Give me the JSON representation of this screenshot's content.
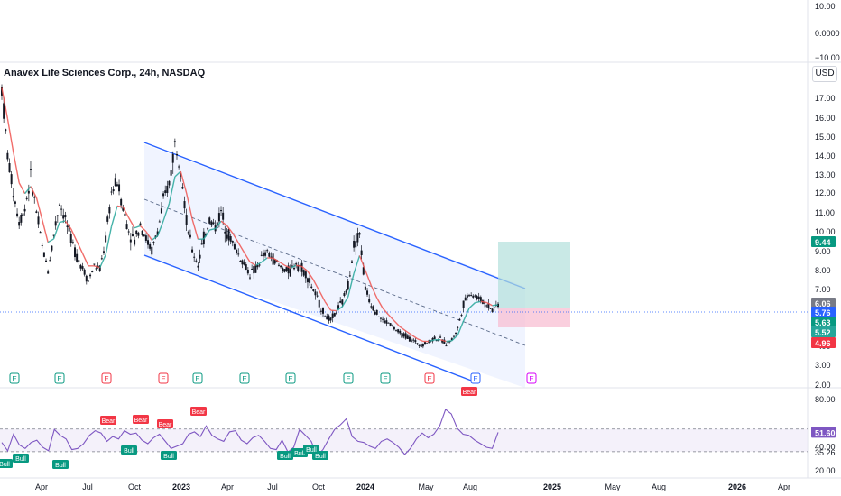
{
  "header": {
    "symbol_title": "Anavex Life Sciences Corp., 24h, NASDAQ",
    "currency": "USD"
  },
  "colors": {
    "channel": "#2962ff",
    "ema_up": "#26a69a",
    "ema_down": "#ef5350",
    "rsi": "#7e57c2",
    "profit_zone": "#b2dfdb",
    "loss_zone": "#f8bbd0",
    "candles": "#131722"
  },
  "chart_data": [
    {
      "type": "line",
      "title": "",
      "ylim": [
        2.0,
        18.0
      ],
      "y_scale": "log",
      "x_ticks": [
        "Apr",
        "Jul",
        "Oct",
        "2023",
        "Apr",
        "Jul",
        "Oct",
        "2024",
        "May",
        "Aug",
        "2025",
        "May",
        "Aug",
        "2026",
        "Apr"
      ],
      "y_ticks": [
        17.0,
        16.0,
        15.0,
        14.0,
        13.0,
        12.0,
        11.0,
        10.0,
        9.0,
        8.0,
        7.0,
        6.0,
        5.0,
        4.0,
        3.0,
        2.0
      ],
      "price_labels": [
        {
          "value": "9.44",
          "color": "#089981"
        },
        {
          "value": "6.06",
          "color": "#787b86"
        },
        {
          "value": "5.76",
          "color": "#2962ff"
        },
        {
          "value": "5.63",
          "color": "#089981"
        },
        {
          "value": "5.52",
          "color": "#26a69a"
        },
        {
          "value": "4.96",
          "color": "#f23645"
        }
      ],
      "series": [
        {
          "values": [
            17.5,
            14.0,
            12.0,
            10.5,
            11.2,
            12.8,
            11.0,
            9.2,
            8.0,
            9.8,
            11.5,
            10.6,
            9.6,
            8.7,
            8.1,
            7.4,
            8.2,
            8.0,
            9.6,
            12.0,
            12.6,
            11.2,
            10.0,
            9.5,
            10.4,
            9.6,
            9.0,
            10.0,
            11.5,
            12.5,
            14.6,
            13.5,
            10.5,
            9.0,
            8.3,
            9.6,
            10.6,
            10.2,
            11.0,
            10.0,
            9.4,
            8.8,
            8.3,
            7.8,
            8.0,
            8.6,
            8.9,
            8.6,
            8.2,
            8.0,
            7.9,
            8.4,
            8.1,
            7.6,
            6.9,
            6.2,
            5.6,
            5.3,
            5.8,
            6.3,
            7.2,
            9.3,
            9.9,
            7.0,
            6.2,
            5.7,
            5.3,
            5.2,
            4.9,
            4.6,
            4.5,
            4.3,
            4.1,
            4.05,
            4.2,
            4.4,
            4.3,
            4.1,
            4.3,
            4.9,
            6.2,
            6.8,
            6.6,
            6.4,
            6.2,
            5.9,
            6.2
          ]
        }
      ],
      "future_markers": [
        3.5
      ]
    },
    {
      "type": "line",
      "title": "",
      "ylim": [
        20.0,
        80.0
      ],
      "y_ticks": [
        "80.00",
        "54.39",
        "51.60",
        "40.00",
        "35.26",
        "20.00"
      ],
      "bands": {
        "upper": 54.39,
        "lower": 35.26
      },
      "values": [
        43,
        36,
        50,
        41,
        38,
        43,
        45,
        39,
        36,
        54,
        49,
        46,
        37,
        38,
        42,
        49,
        53,
        51,
        44,
        48,
        46,
        53,
        50,
        51,
        45,
        42,
        47,
        50,
        44,
        38,
        40,
        42,
        50,
        52,
        48,
        57,
        49,
        46,
        44,
        52,
        53,
        45,
        42,
        47,
        49,
        44,
        38,
        37,
        45,
        35,
        39,
        54,
        49,
        44,
        32,
        37,
        46,
        54,
        58,
        63,
        48,
        44,
        43,
        40,
        38,
        44,
        46,
        43,
        39,
        33,
        38,
        46,
        51,
        47,
        50,
        57,
        71,
        67,
        55,
        50,
        49,
        45,
        42,
        39,
        38,
        51.6
      ],
      "signals": [
        {
          "label": "Bull",
          "dir": "up"
        },
        {
          "label": "Bull",
          "dir": "up"
        },
        {
          "label": "Bull",
          "dir": "up"
        },
        {
          "label": "Bear",
          "dir": "down"
        },
        {
          "label": "Bull",
          "dir": "up"
        },
        {
          "label": "Bear",
          "dir": "down"
        },
        {
          "label": "Bear",
          "dir": "down"
        },
        {
          "label": "Bull",
          "dir": "up"
        },
        {
          "label": "Bear",
          "dir": "down"
        },
        {
          "label": "Bull",
          "dir": "up"
        },
        {
          "label": "Bull",
          "dir": "up"
        },
        {
          "label": "Bull",
          "dir": "up"
        },
        {
          "label": "Bull",
          "dir": "up"
        },
        {
          "label": "Bear",
          "dir": "down"
        }
      ]
    },
    {
      "type": "line",
      "title": "",
      "y_ticks": [
        "10.00",
        "0.0000",
        "−10.00"
      ],
      "values": []
    }
  ],
  "earnings_markers": [
    {
      "label": "E",
      "kind": "green"
    },
    {
      "label": "E",
      "kind": "green"
    },
    {
      "label": "E",
      "kind": "red"
    },
    {
      "label": "E",
      "kind": "red"
    },
    {
      "label": "E",
      "kind": "green"
    },
    {
      "label": "E",
      "kind": "green"
    },
    {
      "label": "E",
      "kind": "green"
    },
    {
      "label": "E",
      "kind": "green"
    },
    {
      "label": "E",
      "kind": "green"
    },
    {
      "label": "E",
      "kind": "red"
    },
    {
      "label": "E",
      "kind": "blue"
    },
    {
      "label": "E",
      "kind": "future"
    }
  ]
}
